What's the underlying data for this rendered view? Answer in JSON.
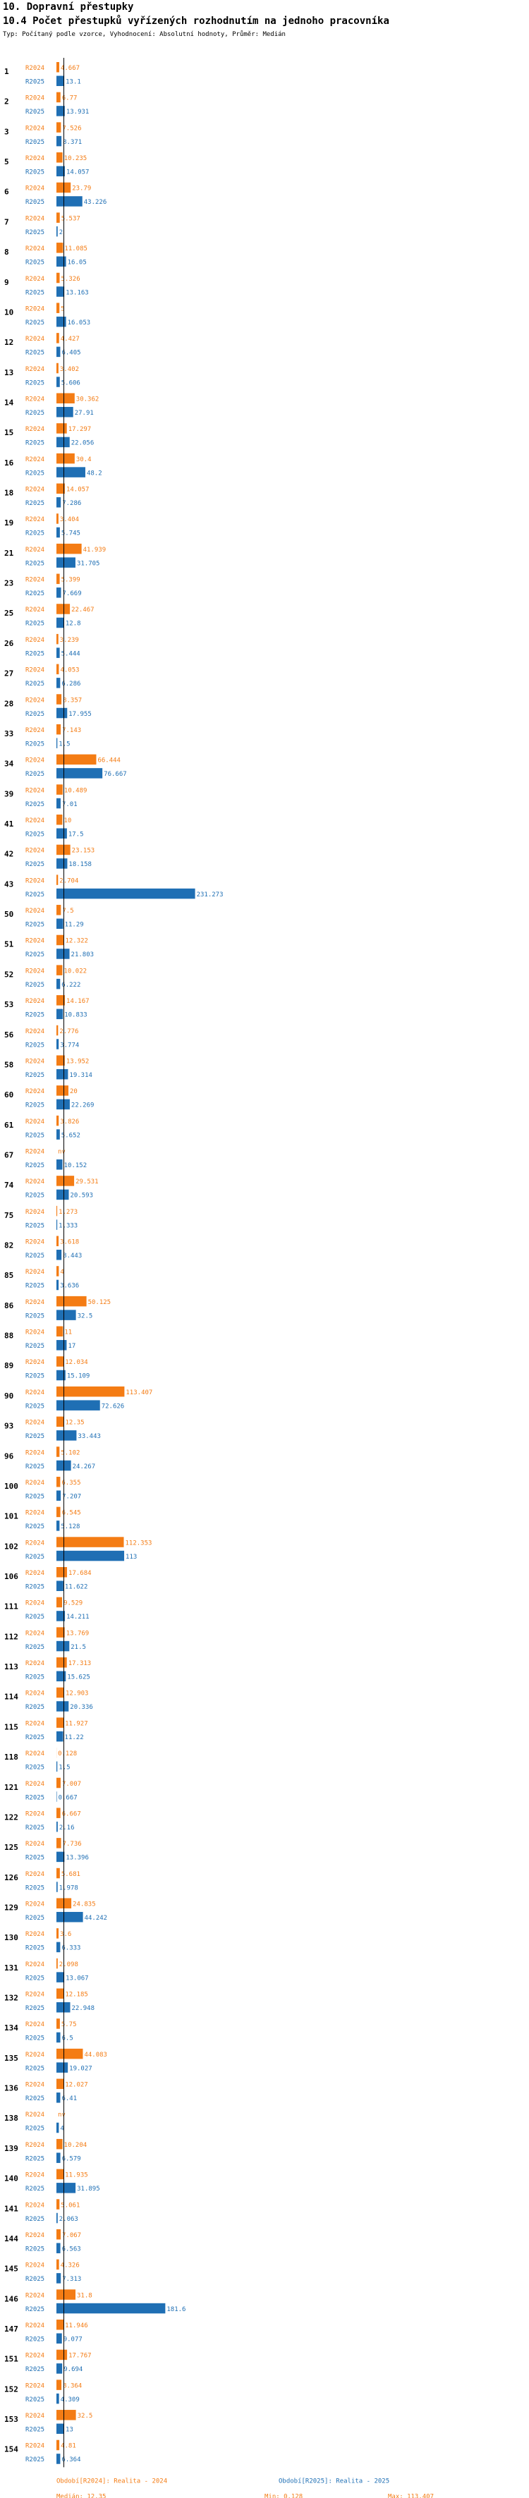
{
  "header": {
    "title1": "10. Dopravní přestupky",
    "title2": "10.4 Počet přestupků vyřízených rozhodnutím na jednoho pracovníka",
    "subtitle": "Typ: Počítaný podle vzorce, Vyhodnocení: Absolutní hodnoty, Průměr: Medián"
  },
  "colors": {
    "r2024": "#f47c14",
    "r2025": "#1f6fb4",
    "median_line": "#000000"
  },
  "chart_data": {
    "type": "bar",
    "orientation": "horizontal",
    "xlim": [
      0,
      231.273
    ],
    "categories": [
      "1",
      "2",
      "3",
      "5",
      "6",
      "7",
      "8",
      "9",
      "10",
      "12",
      "13",
      "14",
      "15",
      "16",
      "18",
      "19",
      "21",
      "23",
      "25",
      "26",
      "27",
      "28",
      "33",
      "34",
      "39",
      "41",
      "42",
      "43",
      "50",
      "51",
      "52",
      "53",
      "56",
      "58",
      "60",
      "61",
      "67",
      "74",
      "75",
      "82",
      "85",
      "86",
      "88",
      "89",
      "90",
      "93",
      "96",
      "100",
      "101",
      "102",
      "106",
      "111",
      "112",
      "113",
      "114",
      "115",
      "118",
      "121",
      "122",
      "125",
      "126",
      "129",
      "130",
      "131",
      "132",
      "134",
      "135",
      "136",
      "138",
      "139",
      "140",
      "141",
      "144",
      "145",
      "146",
      "147",
      "151",
      "152",
      "153",
      "154"
    ],
    "series": [
      {
        "name": "R2024",
        "label_text": "R2024",
        "color": "#f47c14",
        "values": [
          4.667,
          6.77,
          7.526,
          10.235,
          23.79,
          5.537,
          11.085,
          5.326,
          5,
          4.427,
          3.402,
          30.362,
          17.297,
          30.4,
          14.057,
          3.404,
          41.939,
          5.399,
          22.467,
          3.239,
          4.053,
          8.357,
          7.143,
          66.444,
          10.489,
          10,
          23.153,
          2.704,
          7.5,
          12.322,
          10.022,
          14.167,
          2.776,
          13.952,
          20,
          3.826,
          0,
          29.531,
          1.273,
          3.618,
          4,
          50.125,
          11,
          12.034,
          113.407,
          12.35,
          5.102,
          6.355,
          6.545,
          112.353,
          17.684,
          9.529,
          13.769,
          17.313,
          12.903,
          11.927,
          0.128,
          7.007,
          6.667,
          7.736,
          5.681,
          24.835,
          3.6,
          2.098,
          12.185,
          5.75,
          44.083,
          12.027,
          0,
          10.204,
          11.935,
          5.061,
          7.067,
          4.326,
          31.8,
          11.946,
          17.767,
          8.364,
          32.5,
          4.81
        ],
        "labels": [
          "4.667",
          "6.77",
          "7.526",
          "10.235",
          "23.79",
          "5.537",
          "11.085",
          "5.326",
          "5",
          "4.427",
          "3.402",
          "30.362",
          "17.297",
          "30.4",
          "14.057",
          "3.404",
          "41.939",
          "5.399",
          "22.467",
          "3.239",
          "4.053",
          "8.357",
          "7.143",
          "66.444",
          "10.489",
          "10",
          "23.153",
          "2.704",
          "7.5",
          "12.322",
          "10.022",
          "14.167",
          "2.776",
          "13.952",
          "20",
          "3.826",
          "nv",
          "29.531",
          "1.273",
          "3.618",
          "4",
          "50.125",
          "11",
          "12.034",
          "113.407",
          "12.35",
          "5.102",
          "6.355",
          "6.545",
          "112.353",
          "17.684",
          "9.529",
          "13.769",
          "17.313",
          "12.903",
          "11.927",
          "0.128",
          "7.007",
          "6.667",
          "7.736",
          "5.681",
          "24.835",
          "3.6",
          "2.098",
          "12.185",
          "5.75",
          "44.083",
          "12.027",
          "nv",
          "10.204",
          "11.935",
          "5.061",
          "7.067",
          "4.326",
          "31.8",
          "11.946",
          "17.767",
          "8.364",
          "32.5",
          "4.81"
        ]
      },
      {
        "name": "R2025",
        "label_text": "R2025",
        "color": "#1f6fb4",
        "values": [
          13.1,
          13.931,
          8.371,
          14.057,
          43.226,
          2,
          16.05,
          13.163,
          16.053,
          6.405,
          5.606,
          27.91,
          22.056,
          48.2,
          7.286,
          5.745,
          31.705,
          7.669,
          12.8,
          5.444,
          6.286,
          17.955,
          1.5,
          76.667,
          7.01,
          17.5,
          18.158,
          231.273,
          11.29,
          21.803,
          6.222,
          10.833,
          3.774,
          19.314,
          22.269,
          5.652,
          10.152,
          20.593,
          1.333,
          8.443,
          3.636,
          32.5,
          17,
          15.109,
          72.626,
          33.443,
          24.267,
          7.207,
          5.128,
          113,
          11.622,
          14.211,
          21.5,
          15.625,
          20.336,
          11.22,
          1.5,
          0.667,
          2.16,
          13.396,
          1.978,
          44.242,
          6.333,
          13.067,
          22.948,
          6.5,
          19.027,
          6.41,
          4,
          6.579,
          31.895,
          2.063,
          6.563,
          7.313,
          181.6,
          9.077,
          9.694,
          4.309,
          13,
          6.364
        ],
        "labels": [
          "13.1",
          "13.931",
          "8.371",
          "14.057",
          "43.226",
          "2",
          "16.05",
          "13.163",
          "16.053",
          "6.405",
          "5.606",
          "27.91",
          "22.056",
          "48.2",
          "7.286",
          "5.745",
          "31.705",
          "7.669",
          "12.8",
          "5.444",
          "6.286",
          "17.955",
          "1.5",
          "76.667",
          "7.01",
          "17.5",
          "18.158",
          "231.273",
          "11.29",
          "21.803",
          "6.222",
          "10.833",
          "3.774",
          "19.314",
          "22.269",
          "5.652",
          "10.152",
          "20.593",
          "1.333",
          "8.443",
          "3.636",
          "32.5",
          "17",
          "15.109",
          "72.626",
          "33.443",
          "24.267",
          "7.207",
          "5.128",
          "113",
          "11.622",
          "14.211",
          "21.5",
          "15.625",
          "20.336",
          "11.22",
          "1.5",
          "0.667",
          "2.16",
          "13.396",
          "1.978",
          "44.242",
          "6.333",
          "13.067",
          "22.948",
          "6.5",
          "19.027",
          "6.41",
          "4",
          "6.579",
          "31.895",
          "2.063",
          "6.563",
          "7.313",
          "181.6",
          "9.077",
          "9.694",
          "4.309",
          "13",
          "6.364"
        ]
      }
    ],
    "median_2024": 12.35,
    "median_2025": 12.311,
    "footer": {
      "legend_2024": "Období[R2024]: Realita - 2024",
      "legend_2025": "Období[R2025]: Realita - 2025",
      "median_2024": "Medián: 12.35",
      "min_2024": "Min: 0.128",
      "max_2024": "Max: 113.407",
      "median_2025": "Medián: 12.311",
      "min_2025": "Min: 0.667",
      "max_2025": "Max: 231.273"
    }
  }
}
